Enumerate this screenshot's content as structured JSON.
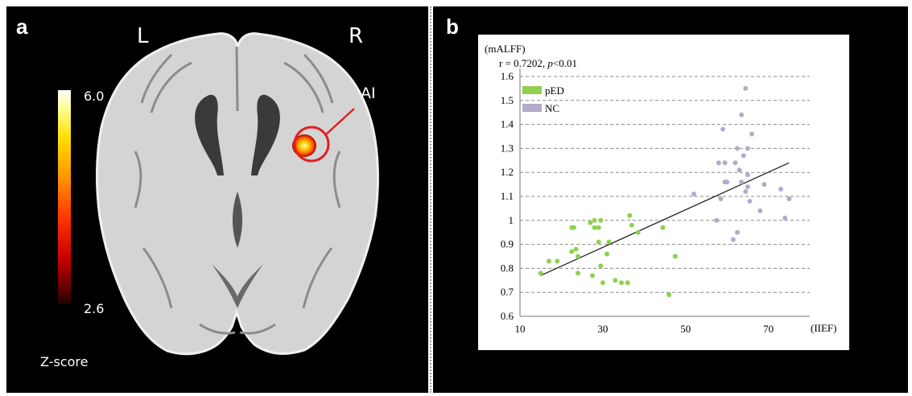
{
  "panel_a": {
    "letter": "a",
    "left_label": "L",
    "right_label": "R",
    "roi_label": "AI",
    "colorbar": {
      "max_label": "6.0",
      "min_label": "2.6",
      "title": "Z-score"
    }
  },
  "panel_b": {
    "letter": "b"
  },
  "chart_data": {
    "type": "scatter",
    "ylabel": "(mALFF)",
    "xlabel": "(IIEF)",
    "annotation": "r = 0.7202, p<0.01",
    "annotation_r": "r = 0.7202, ",
    "annotation_p": "p",
    "annotation_sig": "<0.01",
    "xlim": [
      10,
      80
    ],
    "ylim": [
      0.6,
      1.6
    ],
    "xticks": [
      "10",
      "30",
      "50",
      "70"
    ],
    "yticks": [
      "0.6",
      "0.7",
      "0.8",
      "0.9",
      "1",
      "1.1",
      "1.2",
      "1.3",
      "1.4",
      "1.5",
      "1.6"
    ],
    "grid": "horizontal dashed",
    "legend_position": "top-left",
    "series": [
      {
        "name": "pED",
        "color": "#8fd14f",
        "x": [
          15,
          17,
          19,
          22.5,
          22.5,
          23,
          23.5,
          24,
          24,
          27,
          27.5,
          28,
          28,
          29,
          29,
          29.5,
          29.5,
          30,
          31,
          31.5,
          33,
          34.5,
          36,
          36.5,
          37,
          38.5,
          44.5,
          46,
          47.5
        ],
        "y": [
          0.78,
          0.83,
          0.83,
          0.87,
          0.97,
          0.97,
          0.88,
          0.78,
          0.85,
          0.99,
          0.77,
          0.97,
          1.0,
          0.91,
          0.97,
          1.0,
          0.81,
          0.74,
          0.86,
          0.91,
          0.75,
          0.74,
          0.74,
          1.02,
          0.98,
          0.95,
          0.97,
          0.69,
          0.85
        ]
      },
      {
        "name": "NC",
        "color": "#b3aacd",
        "x": [
          52,
          57.5,
          58,
          58.5,
          59,
          59.5,
          59.5,
          60,
          61.5,
          62,
          62.5,
          62.5,
          63,
          63.5,
          63.5,
          64,
          64.5,
          64.5,
          65,
          65,
          65,
          65.5,
          66,
          68,
          69,
          73,
          74,
          75
        ],
        "y": [
          1.11,
          1.0,
          1.24,
          1.09,
          1.38,
          1.16,
          1.24,
          1.16,
          0.92,
          1.24,
          0.95,
          1.3,
          1.21,
          1.16,
          1.44,
          1.27,
          1.55,
          1.12,
          1.14,
          1.3,
          1.19,
          1.08,
          1.36,
          1.04,
          1.15,
          1.13,
          1.01,
          1.09
        ]
      }
    ],
    "trendline": {
      "x": [
        15,
        75
      ],
      "y": [
        0.77,
        1.24
      ]
    }
  }
}
